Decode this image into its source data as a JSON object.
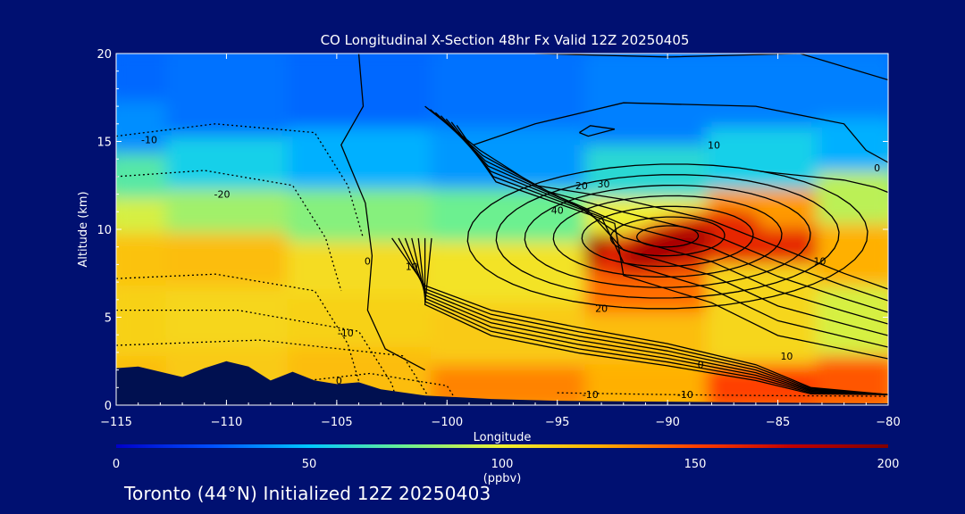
{
  "colors": {
    "background": "#001071",
    "ground": "#001050",
    "contour": "#000000",
    "colormap": [
      "#0000c8",
      "#0050ff",
      "#00c8ff",
      "#6cf090",
      "#f0f030",
      "#ffb000",
      "#ff4000",
      "#c00000",
      "#800000"
    ]
  },
  "footer": "Toronto (44°N) Initialized 12Z 20250403",
  "chart_data": {
    "type": "heatmap",
    "title": "CO Longitudinal X-Section 48hr  Fx Valid 12Z 20250405",
    "xlabel": "Longitude",
    "ylabel": "Altitude (km)",
    "xlim": [
      -115,
      -80
    ],
    "ylim": [
      0,
      20
    ],
    "xticks": [
      "-115",
      "-110",
      "-105",
      "-100",
      "-95",
      "-90",
      "-85",
      "-80"
    ],
    "yticks": [
      "0",
      "5",
      "10",
      "15",
      "20"
    ],
    "colorbar": {
      "range": [
        0,
        200
      ],
      "ticks": [
        "0",
        "50",
        "100",
        "150",
        "200"
      ],
      "unit": "(ppbv)"
    },
    "co_field_ppbv": [
      {
        "lon": -115,
        "values_by_altitude": [
          {
            "z": 1,
            "v": 120
          },
          {
            "z": 5,
            "v": 112
          },
          {
            "z": 9,
            "v": 118
          },
          {
            "z": 11,
            "v": 95
          },
          {
            "z": 13,
            "v": 70
          },
          {
            "z": 16,
            "v": 38
          },
          {
            "z": 19,
            "v": 30
          }
        ]
      },
      {
        "lon": -110,
        "values_by_altitude": [
          {
            "z": 2,
            "v": 115
          },
          {
            "z": 5,
            "v": 110
          },
          {
            "z": 9,
            "v": 120
          },
          {
            "z": 11,
            "v": 85
          },
          {
            "z": 14,
            "v": 55
          },
          {
            "z": 17,
            "v": 32
          }
        ]
      },
      {
        "lon": -104,
        "values_by_altitude": [
          {
            "z": 2,
            "v": 120
          },
          {
            "z": 5,
            "v": 112
          },
          {
            "z": 8,
            "v": 108
          },
          {
            "z": 11,
            "v": 80
          },
          {
            "z": 14,
            "v": 45
          },
          {
            "z": 18,
            "v": 30
          }
        ]
      },
      {
        "lon": -97,
        "values_by_altitude": [
          {
            "z": 1,
            "v": 135
          },
          {
            "z": 4,
            "v": 115
          },
          {
            "z": 8,
            "v": 105
          },
          {
            "z": 11,
            "v": 75
          },
          {
            "z": 14,
            "v": 40
          },
          {
            "z": 18,
            "v": 32
          }
        ]
      },
      {
        "lon": -90,
        "values_by_altitude": [
          {
            "z": 1,
            "v": 125
          },
          {
            "z": 4,
            "v": 120
          },
          {
            "z": 7,
            "v": 140
          },
          {
            "z": 8.8,
            "v": 185
          },
          {
            "z": 11,
            "v": 100
          },
          {
            "z": 13,
            "v": 60
          },
          {
            "z": 17,
            "v": 35
          }
        ]
      },
      {
        "lon": -86,
        "values_by_altitude": [
          {
            "z": 1,
            "v": 150
          },
          {
            "z": 4,
            "v": 110
          },
          {
            "z": 7,
            "v": 110
          },
          {
            "z": 9.5,
            "v": 160
          },
          {
            "z": 11,
            "v": 130
          },
          {
            "z": 14,
            "v": 55
          },
          {
            "z": 18,
            "v": 35
          }
        ]
      },
      {
        "lon": -80,
        "values_by_altitude": [
          {
            "z": 1,
            "v": 145
          },
          {
            "z": 5,
            "v": 95
          },
          {
            "z": 9,
            "v": 125
          },
          {
            "z": 12,
            "v": 90
          },
          {
            "z": 15,
            "v": 45
          },
          {
            "z": 18,
            "v": 35
          }
        ]
      }
    ],
    "contour_labels": [
      {
        "text": "-10",
        "lon": -113.5,
        "z": 15.1
      },
      {
        "text": "-20",
        "lon": -110.2,
        "z": 12.0
      },
      {
        "text": "0",
        "lon": -103.6,
        "z": 8.2
      },
      {
        "text": "10",
        "lon": -101.6,
        "z": 7.9
      },
      {
        "text": "-10",
        "lon": -104.6,
        "z": 4.1
      },
      {
        "text": "0",
        "lon": -104.9,
        "z": 1.4
      },
      {
        "text": "-10",
        "lon": -93.5,
        "z": 0.6
      },
      {
        "text": "20",
        "lon": -93.9,
        "z": 12.5
      },
      {
        "text": "30",
        "lon": -92.9,
        "z": 12.6
      },
      {
        "text": "40",
        "lon": -95.0,
        "z": 11.1
      },
      {
        "text": "10",
        "lon": -87.9,
        "z": 14.8
      },
      {
        "text": "0",
        "lon": -80.5,
        "z": 13.5
      },
      {
        "text": "10",
        "lon": -83.1,
        "z": 8.2
      },
      {
        "text": "20",
        "lon": -93.0,
        "z": 5.5
      },
      {
        "text": "10",
        "lon": -84.6,
        "z": 2.8
      },
      {
        "text": "0",
        "lon": -88.5,
        "z": 2.3
      },
      {
        "text": "-10",
        "lon": -89.2,
        "z": 0.6
      }
    ],
    "terrain_km": [
      {
        "lon": -115,
        "z": 2.1
      },
      {
        "lon": -114,
        "z": 2.2
      },
      {
        "lon": -113,
        "z": 1.9
      },
      {
        "lon": -112,
        "z": 1.6
      },
      {
        "lon": -111,
        "z": 2.1
      },
      {
        "lon": -110,
        "z": 2.5
      },
      {
        "lon": -109,
        "z": 2.2
      },
      {
        "lon": -108,
        "z": 1.4
      },
      {
        "lon": -107,
        "z": 1.9
      },
      {
        "lon": -106,
        "z": 1.4
      },
      {
        "lon": -105,
        "z": 1.2
      },
      {
        "lon": -104,
        "z": 1.3
      },
      {
        "lon": -103,
        "z": 0.9
      },
      {
        "lon": -101,
        "z": 0.55
      },
      {
        "lon": -98,
        "z": 0.35
      },
      {
        "lon": -95,
        "z": 0.25
      },
      {
        "lon": -90,
        "z": 0.2
      },
      {
        "lon": -86,
        "z": 0.15
      },
      {
        "lon": -83,
        "z": 0.12
      },
      {
        "lon": -80,
        "z": 0.1
      }
    ]
  }
}
